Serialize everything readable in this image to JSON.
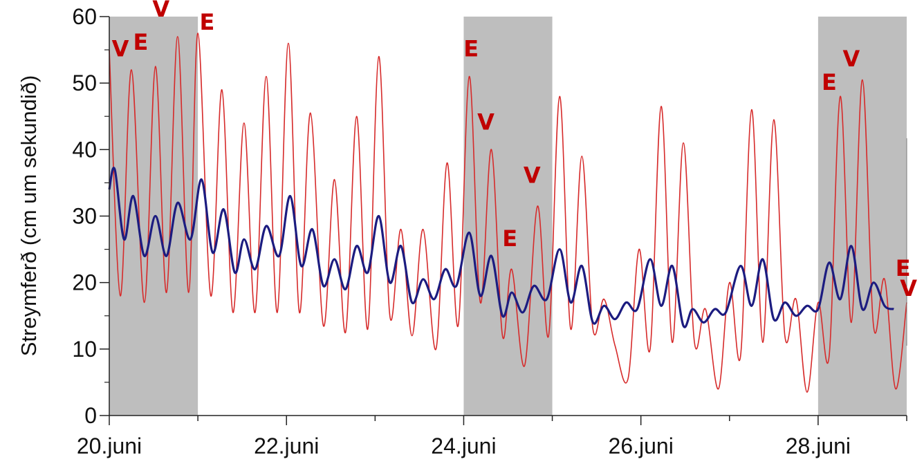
{
  "chart_data": {
    "type": "line",
    "ylabel": "Streymferð (cm um sekundið)",
    "ylim": [
      0,
      60
    ],
    "xlim": [
      "2019-06-20",
      "2019-06-29"
    ],
    "y_ticks": [
      0,
      10,
      20,
      30,
      40,
      50,
      60
    ],
    "x_ticks": [
      {
        "date": "2019-06-20",
        "label": "20.juni"
      },
      {
        "date": "2019-06-22",
        "label": "22.juni"
      },
      {
        "date": "2019-06-24",
        "label": "24.juni"
      },
      {
        "date": "2019-06-26",
        "label": "26.juni"
      },
      {
        "date": "2019-06-28",
        "label": "28.juni"
      }
    ],
    "grid": false,
    "shaded_periods": [
      [
        "2019-06-20",
        "2019-06-21"
      ],
      [
        "2019-06-24",
        "2019-06-25"
      ],
      [
        "2019-06-28",
        "2019-06-29"
      ]
    ],
    "colors": {
      "series_red": "#d62a2a",
      "series_blue": "#1c1c80",
      "shade": "#bebebe",
      "marker": "#c00000",
      "axis": "#222222"
    },
    "series": [
      {
        "color": "#d62a2a",
        "points": [
          [
            "2019-06-20 00:00",
            55
          ],
          [
            "2019-06-20 03:00",
            18
          ],
          [
            "2019-06-20 06:00",
            52
          ],
          [
            "2019-06-20 09:30",
            17
          ],
          [
            "2019-06-20 12:30",
            52.5
          ],
          [
            "2019-06-20 15:30",
            18.5
          ],
          [
            "2019-06-20 18:30",
            57
          ],
          [
            "2019-06-20 21:30",
            18.5
          ],
          [
            "2019-06-21 00:00",
            57.5
          ],
          [
            "2019-06-21 03:30",
            18
          ],
          [
            "2019-06-21 06:30",
            49
          ],
          [
            "2019-06-21 09:30",
            15.5
          ],
          [
            "2019-06-21 12:30",
            44
          ],
          [
            "2019-06-21 15:30",
            15.5
          ],
          [
            "2019-06-21 18:30",
            51
          ],
          [
            "2019-06-21 21:30",
            15.5
          ],
          [
            "2019-06-22 00:30",
            56
          ],
          [
            "2019-06-22 03:30",
            15.5
          ],
          [
            "2019-06-22 06:30",
            45.5
          ],
          [
            "2019-06-22 10:00",
            13.5
          ],
          [
            "2019-06-22 13:00",
            35.5
          ],
          [
            "2019-06-22 16:00",
            12.5
          ],
          [
            "2019-06-22 19:00",
            45
          ],
          [
            "2019-06-22 22:00",
            13
          ],
          [
            "2019-06-23 01:00",
            54
          ],
          [
            "2019-06-23 04:00",
            15
          ],
          [
            "2019-06-23 07:00",
            28
          ],
          [
            "2019-06-23 10:00",
            12
          ],
          [
            "2019-06-23 13:00",
            28
          ],
          [
            "2019-06-23 16:30",
            10
          ],
          [
            "2019-06-23 19:30",
            38
          ],
          [
            "2019-06-23 22:30",
            13.5
          ],
          [
            "2019-06-24 01:30",
            51
          ],
          [
            "2019-06-24 04:30",
            17
          ],
          [
            "2019-06-24 07:30",
            40
          ],
          [
            "2019-06-24 10:30",
            12
          ],
          [
            "2019-06-24 13:00",
            22
          ],
          [
            "2019-06-24 16:30",
            7.5
          ],
          [
            "2019-06-24 20:00",
            31.5
          ],
          [
            "2019-06-24 23:00",
            12
          ],
          [
            "2019-06-25 02:00",
            48
          ],
          [
            "2019-06-25 05:00",
            13
          ],
          [
            "2019-06-25 08:00",
            39
          ],
          [
            "2019-06-25 11:00",
            13
          ],
          [
            "2019-06-25 14:00",
            17.5
          ],
          [
            "2019-06-25 17:00",
            10.5
          ],
          [
            "2019-06-25 20:30",
            5.5
          ],
          [
            "2019-06-25 23:30",
            25
          ],
          [
            "2019-06-26 02:30",
            10
          ],
          [
            "2019-06-26 05:30",
            46.5
          ],
          [
            "2019-06-26 08:30",
            11
          ],
          [
            "2019-06-26 11:30",
            41
          ],
          [
            "2019-06-26 14:30",
            11
          ],
          [
            "2019-06-26 17:30",
            16
          ],
          [
            "2019-06-26 21:00",
            4
          ],
          [
            "2019-06-27 00:00",
            20
          ],
          [
            "2019-06-27 03:00",
            9
          ],
          [
            "2019-06-27 06:00",
            46
          ],
          [
            "2019-06-27 09:00",
            11
          ],
          [
            "2019-06-27 12:00",
            44.5
          ],
          [
            "2019-06-27 15:00",
            12
          ],
          [
            "2019-06-27 18:00",
            17.5
          ],
          [
            "2019-06-27 21:00",
            3.5
          ],
          [
            "2019-06-28 00:00",
            17
          ],
          [
            "2019-06-28 03:00",
            9
          ],
          [
            "2019-06-28 06:00",
            48
          ],
          [
            "2019-06-28 09:00",
            14
          ],
          [
            "2019-06-28 12:00",
            50.5
          ],
          [
            "2019-06-28 15:00",
            13.5
          ],
          [
            "2019-06-28 18:00",
            20.5
          ],
          [
            "2019-06-28 21:00",
            4
          ],
          [
            "2019-06-29 00:00",
            17
          ]
        ]
      },
      {
        "color": "#1c1c80",
        "points": [
          [
            "2019-06-20 00:00",
            34
          ],
          [
            "2019-06-20 01:30",
            37
          ],
          [
            "2019-06-20 04:00",
            26.5
          ],
          [
            "2019-06-20 06:30",
            33
          ],
          [
            "2019-06-20 09:30",
            24
          ],
          [
            "2019-06-20 12:30",
            30
          ],
          [
            "2019-06-20 15:30",
            24
          ],
          [
            "2019-06-20 18:30",
            32
          ],
          [
            "2019-06-20 22:00",
            26.5
          ],
          [
            "2019-06-21 01:00",
            35.5
          ],
          [
            "2019-06-21 04:00",
            24.5
          ],
          [
            "2019-06-21 07:00",
            31
          ],
          [
            "2019-06-21 10:00",
            21.5
          ],
          [
            "2019-06-21 12:30",
            26.5
          ],
          [
            "2019-06-21 15:30",
            22
          ],
          [
            "2019-06-21 18:30",
            28.5
          ],
          [
            "2019-06-21 22:00",
            24
          ],
          [
            "2019-06-22 01:00",
            33
          ],
          [
            "2019-06-22 04:00",
            22.5
          ],
          [
            "2019-06-22 07:00",
            28
          ],
          [
            "2019-06-22 10:00",
            19.5
          ],
          [
            "2019-06-22 13:00",
            23.5
          ],
          [
            "2019-06-22 16:00",
            19
          ],
          [
            "2019-06-22 19:00",
            25.5
          ],
          [
            "2019-06-22 22:00",
            21.5
          ],
          [
            "2019-06-23 01:00",
            30
          ],
          [
            "2019-06-23 04:00",
            20
          ],
          [
            "2019-06-23 07:00",
            25.5
          ],
          [
            "2019-06-23 10:00",
            17
          ],
          [
            "2019-06-23 13:00",
            20.5
          ],
          [
            "2019-06-23 16:00",
            17.5
          ],
          [
            "2019-06-23 19:00",
            22
          ],
          [
            "2019-06-23 22:00",
            19.5
          ],
          [
            "2019-06-24 01:30",
            27.5
          ],
          [
            "2019-06-24 04:30",
            18
          ],
          [
            "2019-06-24 07:30",
            24
          ],
          [
            "2019-06-24 10:30",
            15
          ],
          [
            "2019-06-24 13:00",
            18.5
          ],
          [
            "2019-06-24 16:00",
            15.5
          ],
          [
            "2019-06-24 19:00",
            19.5
          ],
          [
            "2019-06-24 22:30",
            17.5
          ],
          [
            "2019-06-25 02:00",
            25
          ],
          [
            "2019-06-25 05:00",
            17
          ],
          [
            "2019-06-25 08:00",
            22.5
          ],
          [
            "2019-06-25 11:00",
            14
          ],
          [
            "2019-06-25 14:00",
            16.5
          ],
          [
            "2019-06-25 17:00",
            14.5
          ],
          [
            "2019-06-25 20:00",
            17
          ],
          [
            "2019-06-25 23:00",
            16
          ],
          [
            "2019-06-26 02:30",
            23.5
          ],
          [
            "2019-06-26 05:30",
            16.5
          ],
          [
            "2019-06-26 08:30",
            22.5
          ],
          [
            "2019-06-26 11:30",
            13.5
          ],
          [
            "2019-06-26 14:00",
            16
          ],
          [
            "2019-06-26 17:00",
            14
          ],
          [
            "2019-06-26 20:00",
            16
          ],
          [
            "2019-06-26 23:00",
            15.5
          ],
          [
            "2019-06-27 03:00",
            22.5
          ],
          [
            "2019-06-27 06:00",
            16.5
          ],
          [
            "2019-06-27 09:00",
            23.5
          ],
          [
            "2019-06-27 12:00",
            14.5
          ],
          [
            "2019-06-27 15:00",
            17
          ],
          [
            "2019-06-27 18:00",
            15
          ],
          [
            "2019-06-27 21:00",
            16.5
          ],
          [
            "2019-06-28 00:00",
            16
          ],
          [
            "2019-06-28 03:00",
            23
          ],
          [
            "2019-06-28 06:00",
            17.5
          ],
          [
            "2019-06-28 09:00",
            25.5
          ],
          [
            "2019-06-28 12:00",
            16
          ],
          [
            "2019-06-28 15:00",
            20
          ],
          [
            "2019-06-28 18:00",
            16.5
          ],
          [
            "2019-06-28 20:30",
            16
          ]
        ]
      }
    ],
    "annotations": [
      {
        "text": "V",
        "x": "2019-06-20 03:00",
        "y": 54
      },
      {
        "text": "E",
        "x": "2019-06-20 08:30",
        "y": 55
      },
      {
        "text": "V",
        "x": "2019-06-20 14:00",
        "y": 60
      },
      {
        "text": "E",
        "x": "2019-06-21 02:30",
        "y": 58
      },
      {
        "text": "E",
        "x": "2019-06-24 02:00",
        "y": 54
      },
      {
        "text": "V",
        "x": "2019-06-24 06:00",
        "y": 43
      },
      {
        "text": "V",
        "x": "2019-06-24 18:30",
        "y": 35
      },
      {
        "text": "E",
        "x": "2019-06-24 12:30",
        "y": 25.5
      },
      {
        "text": "E",
        "x": "2019-06-28 03:00",
        "y": 49
      },
      {
        "text": "V",
        "x": "2019-06-28 09:00",
        "y": 52.5
      },
      {
        "text": "E",
        "x": "2019-06-28 23:00",
        "y": 21
      },
      {
        "text": "V",
        "x": "2019-06-29 00:30",
        "y": 18
      }
    ]
  }
}
